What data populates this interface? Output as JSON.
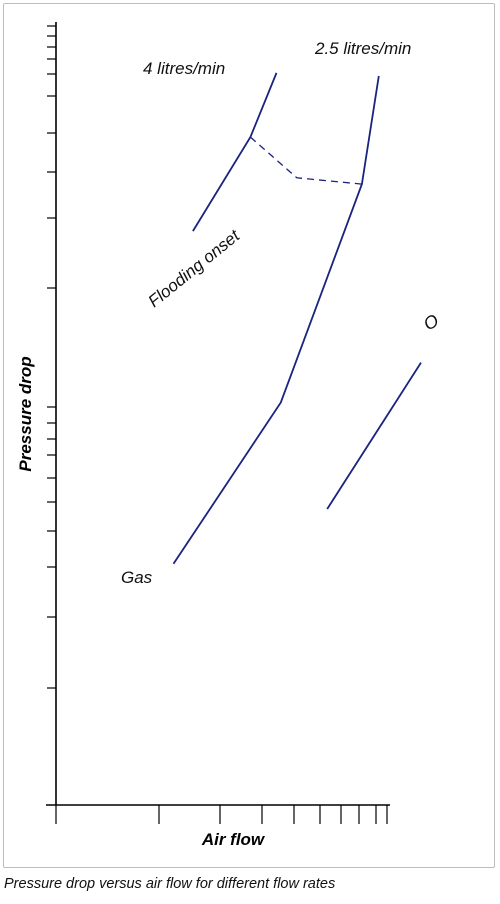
{
  "figure": {
    "caption": "Pressure drop versus air flow for different flow rates"
  },
  "chart_data": {
    "type": "line",
    "scale": "log-log",
    "xlabel": "Air flow",
    "ylabel": "Pressure drop",
    "x_tick_labels": [],
    "y_tick_labels": [],
    "grid": false,
    "legend": "none",
    "line_color": "#1a237e",
    "series": [
      {
        "name": "4 litres/min",
        "style": "solid",
        "points": [
          [
            0.162,
            0.733
          ],
          [
            0.23,
            0.853
          ],
          [
            0.261,
            0.935
          ]
        ]
      },
      {
        "name": "2.5 litres/min",
        "style": "solid",
        "points": [
          [
            0.139,
            0.308
          ],
          [
            0.266,
            0.514
          ],
          [
            0.362,
            0.793
          ],
          [
            0.382,
            0.931
          ]
        ]
      },
      {
        "name": "Flooding onset",
        "style": "dashed",
        "points": [
          [
            0.23,
            0.853
          ],
          [
            0.285,
            0.801
          ],
          [
            0.362,
            0.793
          ]
        ]
      },
      {
        "name": "O",
        "style": "solid",
        "points": [
          [
            0.321,
            0.378
          ],
          [
            0.432,
            0.565
          ]
        ]
      }
    ],
    "annotations": [
      "4 litres/min",
      "2.5 litres/min",
      "Flooding onset",
      "Gas",
      "O"
    ]
  }
}
